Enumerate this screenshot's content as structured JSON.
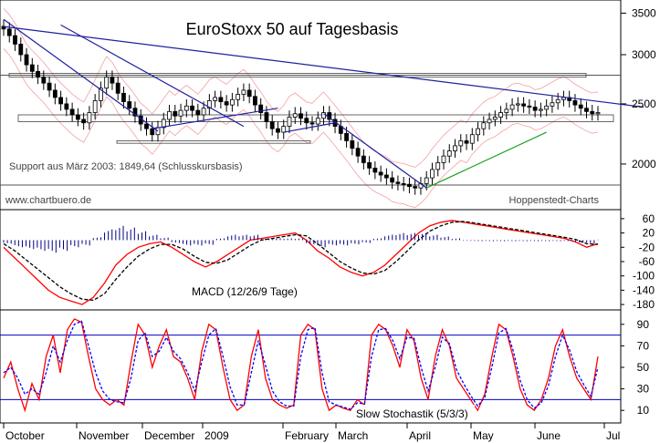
{
  "chart_data": [
    {
      "type": "candlestick",
      "title": "EuroStoxx 50 auf Tagesbasis",
      "yscale": "log",
      "ylim": [
        1700,
        3650
      ],
      "yticks": [
        2000,
        2500,
        3000,
        3500
      ],
      "annotations": {
        "support": "Support aus März 2003: 1849,64 (Schlusskursbasis)",
        "source_left": "www.chartbuero.de",
        "source_right": "Hoppenstedt-Charts"
      },
      "levels": [
        {
          "name": "support",
          "value": 1850
        },
        {
          "name": "resistance",
          "value": 2780
        }
      ],
      "trendlines": [
        {
          "from": [
            0,
            3330
          ],
          "to": [
            112,
            2470
          ]
        },
        {
          "from": [
            0,
            3420
          ],
          "to": [
            27,
            2260
          ]
        },
        {
          "from": [
            10,
            3350
          ],
          "to": [
            42,
            2300
          ]
        },
        {
          "from": [
            26,
            2280
          ],
          "to": [
            48,
            2460
          ]
        },
        {
          "from": [
            49,
            2250
          ],
          "to": [
            58,
            2330
          ]
        },
        {
          "from": [
            56,
            2410
          ],
          "to": [
            74,
            1830
          ]
        },
        {
          "from": [
            74,
            1830
          ],
          "to": [
            95,
            2250
          ]
        }
      ],
      "closes": [
        3300,
        3220,
        3120,
        3000,
        2890,
        2820,
        2760,
        2700,
        2630,
        2560,
        2500,
        2450,
        2400,
        2360,
        2330,
        2420,
        2530,
        2650,
        2760,
        2700,
        2600,
        2520,
        2460,
        2390,
        2320,
        2280,
        2230,
        2290,
        2360,
        2430,
        2390,
        2440,
        2480,
        2440,
        2400,
        2460,
        2530,
        2560,
        2520,
        2490,
        2540,
        2590,
        2630,
        2570,
        2490,
        2420,
        2340,
        2280,
        2250,
        2300,
        2380,
        2410,
        2370,
        2330,
        2320,
        2370,
        2420,
        2360,
        2300,
        2240,
        2180,
        2120,
        2060,
        2010,
        1970,
        1940,
        1920,
        1900,
        1870,
        1860,
        1855,
        1840,
        1830,
        1860,
        1900,
        1960,
        2010,
        2060,
        2100,
        2140,
        2180,
        2160,
        2230,
        2280,
        2330,
        2360,
        2380,
        2420,
        2450,
        2490,
        2500,
        2480,
        2470,
        2440,
        2450,
        2480,
        2510,
        2540,
        2560,
        2530,
        2490,
        2460,
        2430,
        2410,
        2420
      ]
    },
    {
      "type": "line",
      "title": "MACD (12/26/9 Tage)",
      "ylim": [
        -190,
        75
      ],
      "yticks": [
        60,
        20,
        -20,
        -60,
        -100,
        -140,
        -180
      ],
      "series": [
        {
          "name": "MACD",
          "color": "#ff0000",
          "values": [
            -20,
            -50,
            -80,
            -110,
            -140,
            -160,
            -170,
            -180,
            -160,
            -120,
            -70,
            -40,
            -20,
            -10,
            -5,
            -20,
            -40,
            -60,
            -75,
            -60,
            -40,
            -20,
            0,
            5,
            10,
            15,
            20,
            0,
            -30,
            -50,
            -75,
            -90,
            -100,
            -90,
            -70,
            -40,
            -10,
            20,
            40,
            50,
            55,
            50,
            45,
            40,
            35,
            30,
            25,
            20,
            15,
            10,
            5,
            -5,
            -20,
            -10
          ]
        },
        {
          "name": "Signal",
          "color": "#000000",
          "values": [
            -10,
            -30,
            -55,
            -80,
            -105,
            -130,
            -150,
            -165,
            -168,
            -150,
            -110,
            -75,
            -45,
            -25,
            -12,
            -12,
            -25,
            -45,
            -62,
            -65,
            -55,
            -35,
            -15,
            0,
            5,
            10,
            15,
            12,
            -10,
            -35,
            -60,
            -78,
            -92,
            -95,
            -85,
            -60,
            -30,
            0,
            25,
            40,
            50,
            52,
            48,
            43,
            38,
            33,
            28,
            23,
            18,
            13,
            8,
            2,
            -10,
            -12
          ]
        },
        {
          "name": "Histogram",
          "color": "#000080",
          "values": [
            -10,
            -20,
            -25,
            -30,
            -35,
            -30,
            -20,
            -15,
            8,
            30,
            40,
            35,
            25,
            15,
            7,
            -8,
            -15,
            -15,
            -13,
            5,
            15,
            15,
            15,
            5,
            5,
            5,
            5,
            -12,
            -20,
            -15,
            -15,
            -12,
            -8,
            5,
            15,
            20,
            20,
            20,
            15,
            10,
            5,
            -2,
            -3,
            -3,
            -3,
            -3,
            -3,
            -3,
            -3,
            -3,
            -3,
            -7,
            -10,
            2
          ]
        }
      ]
    },
    {
      "type": "line",
      "title": "Slow Stochastik (5/3/3)",
      "ylim": [
        0,
        100
      ],
      "yticks": [
        90,
        70,
        50,
        30,
        10
      ],
      "levels": [
        80,
        20
      ],
      "series": [
        {
          "name": "%K",
          "color": "#ff0000",
          "values": [
            40,
            55,
            30,
            10,
            35,
            20,
            60,
            80,
            45,
            85,
            95,
            92,
            60,
            30,
            20,
            15,
            20,
            15,
            55,
            90,
            80,
            50,
            70,
            85,
            60,
            55,
            40,
            20,
            65,
            90,
            85,
            50,
            20,
            10,
            15,
            60,
            85,
            40,
            20,
            15,
            12,
            15,
            80,
            90,
            85,
            30,
            10,
            15,
            12,
            10,
            20,
            15,
            80,
            90,
            85,
            70,
            50,
            85,
            75,
            40,
            20,
            60,
            85,
            70,
            40,
            30,
            20,
            10,
            25,
            60,
            90,
            85,
            60,
            30,
            15,
            10,
            20,
            40,
            70,
            85,
            60,
            40,
            30,
            20,
            60
          ]
        },
        {
          "name": "%D",
          "color": "#0000ff",
          "values": [
            45,
            50,
            40,
            25,
            30,
            25,
            45,
            70,
            55,
            75,
            90,
            93,
            70,
            45,
            28,
            20,
            18,
            17,
            40,
            75,
            82,
            60,
            65,
            78,
            65,
            58,
            45,
            28,
            55,
            80,
            86,
            60,
            32,
            15,
            15,
            45,
            75,
            52,
            28,
            18,
            14,
            14,
            60,
            85,
            87,
            45,
            18,
            15,
            13,
            11,
            17,
            16,
            60,
            85,
            86,
            75,
            58,
            78,
            77,
            50,
            28,
            50,
            78,
            72,
            48,
            35,
            24,
            14,
            22,
            50,
            82,
            86,
            66,
            38,
            20,
            12,
            17,
            33,
            60,
            80,
            66,
            46,
            34,
            23,
            50
          ]
        }
      ]
    }
  ],
  "x_axis": {
    "labels": [
      "October",
      "November",
      "December",
      "2009",
      "February",
      "March",
      "April",
      "May",
      "June",
      "Jul"
    ]
  }
}
